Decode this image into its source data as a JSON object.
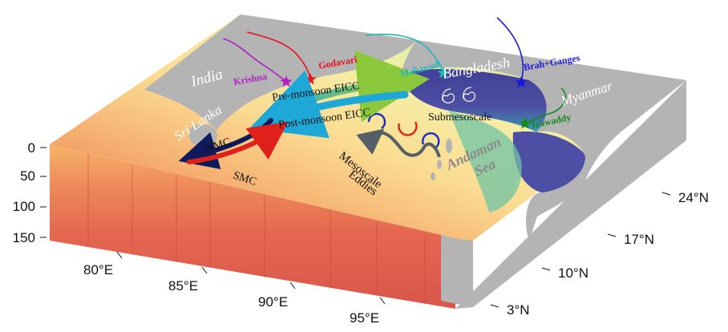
{
  "regions": {
    "india": "India",
    "sri_lanka": "Sri Lanka",
    "bangladesh": "Bangladesh",
    "myanmar": "Myanmar",
    "andaman_1": "Andaman",
    "andaman_2": "Sea"
  },
  "rivers": {
    "krishna": {
      "label": "Krishna",
      "color": "#b01fc0"
    },
    "godavari": {
      "label": "Godavari",
      "color": "#e8121c"
    },
    "mahanadi": {
      "label": "Mahanadi",
      "color": "#1eb8b8"
    },
    "brah": {
      "label": "Brah+Ganges",
      "color": "#1a1adc"
    },
    "irawaddy": {
      "label": "Irawaddy",
      "color": "#118a1a"
    }
  },
  "currents": {
    "pre_eicc": "Pre-monsoon EICC",
    "post_eicc": "Post-monsoon EICC",
    "nmc": "NMC",
    "smc": "SMC"
  },
  "features": {
    "submesoscale": "Submesoscale",
    "mesoscale_1": "Mesoscale",
    "mesoscale_2": "Eddies"
  },
  "axes": {
    "depth_ticks": [
      "0",
      "50",
      "100",
      "150"
    ],
    "lon_ticks": [
      "80°E",
      "85°E",
      "90°E",
      "95°E"
    ],
    "lat_ticks": [
      "3°N",
      "10°N",
      "17°N",
      "24°N"
    ]
  },
  "colors": {
    "land": "#b4b4b4",
    "deep_warm": "#d9504a",
    "fresh": "#4a4a9e",
    "nmc_arrow": "#0f1a5c",
    "smc_arrow": "#e0201a",
    "pre_arrow": "#8cc83c",
    "post_arrow": "#1ea8d8"
  }
}
